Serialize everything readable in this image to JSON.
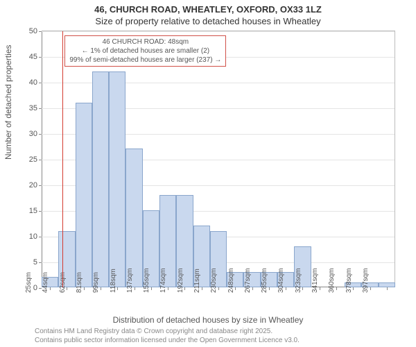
{
  "title": {
    "line1": "46, CHURCH ROAD, WHEATLEY, OXFORD, OX33 1LZ",
    "line2": "Size of property relative to detached houses in Wheatley"
  },
  "chart": {
    "type": "histogram",
    "ylabel": "Number of detached properties",
    "xlabel": "Distribution of detached houses by size in Wheatley",
    "ylim": [
      0,
      50
    ],
    "ytick_step": 5,
    "background_color": "#ffffff",
    "grid_color": "#e4e4e4",
    "axis_color": "#888888",
    "bar_fill": "#c9d8ee",
    "bar_stroke": "#8aa6cc",
    "marker_color": "#d43a2f",
    "callout_border": "#d05048",
    "label_fontsize": 12,
    "tick_fontsize": 11,
    "xtick_labels": [
      "25sqm",
      "44sqm",
      "62sqm",
      "81sqm",
      "99sqm",
      "118sqm",
      "137sqm",
      "155sqm",
      "174sqm",
      "192sqm",
      "211sqm",
      "230sqm",
      "248sqm",
      "267sqm",
      "285sqm",
      "304sqm",
      "323sqm",
      "341sqm",
      "360sqm",
      "378sqm",
      "397sqm"
    ],
    "bar_values": [
      2,
      11,
      36,
      42,
      42,
      27,
      15,
      18,
      18,
      12,
      11,
      3,
      3,
      3,
      3,
      8,
      0,
      0,
      1,
      1,
      1
    ],
    "marker_bin_index": 1,
    "callout": {
      "line1": "46 CHURCH ROAD: 48sqm",
      "line2": "← 1% of detached houses are smaller (2)",
      "line3": "99% of semi-detached houses are larger (237) →"
    }
  },
  "attribution": {
    "line1": "Contains HM Land Registry data © Crown copyright and database right 2025.",
    "line2": "Contains public sector information licensed under the Open Government Licence v3.0."
  }
}
